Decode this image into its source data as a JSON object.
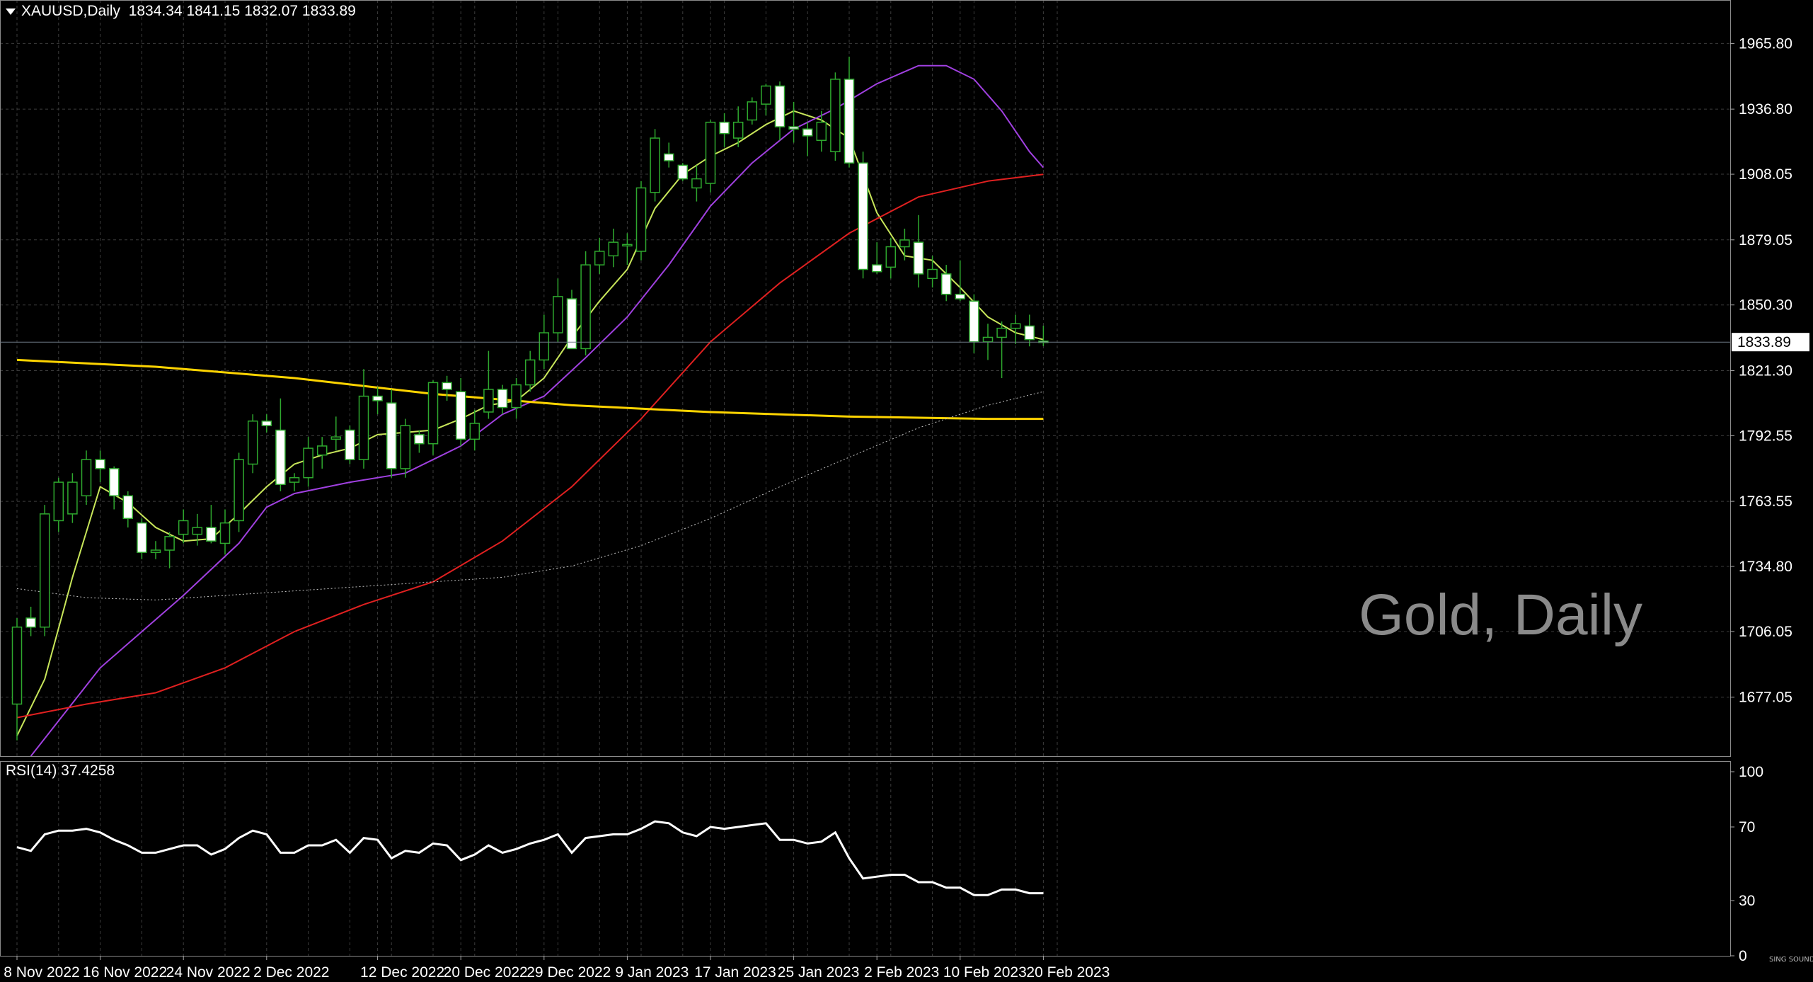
{
  "header": {
    "symbol": "XAUUSD,Daily",
    "ohlc": "1834.34 1841.15 1832.07 1833.89"
  },
  "watermark": "Gold, Daily",
  "rsi_label": "RSI(14) 37.4258",
  "logo_text": "SING SOUND",
  "colors": {
    "background": "#000000",
    "grid": "#3c3c3c",
    "candle_up_fill": "#000000",
    "candle_up_stroke": "#2ea82e",
    "candle_down_fill": "#ffffff",
    "candle_down_stroke": "#2ea82e",
    "ma_fast": "#c8e65a",
    "ma_purple": "#a040e0",
    "ma_red": "#e02020",
    "ma_yellow": "#ffd400",
    "ma_slow_dotted": "#c0c0c0",
    "rsi": "#ffffff",
    "current_price_line": "#6e7a86"
  },
  "chart_data": [
    {
      "type": "candlestick",
      "title": "XAUUSD,Daily",
      "ylim": [
        1651,
        1985
      ],
      "y_ticks": [
        1965.8,
        1936.8,
        1908.05,
        1879.05,
        1850.3,
        1821.3,
        1792.55,
        1763.55,
        1734.8,
        1706.05,
        1677.05
      ],
      "y_tick_labels": [
        "1965.80",
        "1936.80",
        "1908.05",
        "1879.05",
        "1850.30",
        "1821.30",
        "1792.55",
        "1763.55",
        "1734.80",
        "1706.05",
        "1677.05"
      ],
      "current_price": 1833.89,
      "current_price_label": "1833.89",
      "x_ticks": [
        {
          "index": 0,
          "label": "8 Nov 2022"
        },
        {
          "index": 6,
          "label": "16 Nov 2022"
        },
        {
          "index": 12,
          "label": "24 Nov 2022"
        },
        {
          "index": 18,
          "label": "2 Dec 2022"
        },
        {
          "index": 26,
          "label": "12 Dec 2022"
        },
        {
          "index": 32,
          "label": "20 Dec 2022"
        },
        {
          "index": 38,
          "label": "29 Dec 2022"
        },
        {
          "index": 44,
          "label": "9 Jan 2023"
        },
        {
          "index": 50,
          "label": "17 Jan 2023"
        },
        {
          "index": 56,
          "label": "25 Jan 2023"
        },
        {
          "index": 62,
          "label": "2 Feb 2023"
        },
        {
          "index": 68,
          "label": "10 Feb 2023"
        },
        {
          "index": 74,
          "label": "20 Feb 2023"
        }
      ],
      "candles": [
        [
          1674,
          1712,
          1658,
          1708
        ],
        [
          1712,
          1717,
          1704,
          1708
        ],
        [
          1708,
          1762,
          1704,
          1758
        ],
        [
          1755,
          1774,
          1750,
          1772
        ],
        [
          1758,
          1776,
          1754,
          1772
        ],
        [
          1766,
          1786,
          1762,
          1782
        ],
        [
          1782,
          1786,
          1772,
          1778
        ],
        [
          1778,
          1779,
          1760,
          1766
        ],
        [
          1766,
          1768,
          1752,
          1756
        ],
        [
          1754,
          1756,
          1738,
          1741
        ],
        [
          1741,
          1746,
          1738,
          1742
        ],
        [
          1742,
          1750,
          1734,
          1748
        ],
        [
          1749,
          1760,
          1745,
          1755
        ],
        [
          1749,
          1758,
          1744,
          1752
        ],
        [
          1752,
          1762,
          1745,
          1746
        ],
        [
          1745,
          1760,
          1740,
          1754
        ],
        [
          1755,
          1785,
          1750,
          1782
        ],
        [
          1780,
          1802,
          1776,
          1799
        ],
        [
          1799,
          1802,
          1794,
          1797
        ],
        [
          1795,
          1809,
          1768,
          1771
        ],
        [
          1772,
          1776,
          1768,
          1774
        ],
        [
          1774,
          1792,
          1770,
          1787
        ],
        [
          1784,
          1792,
          1778,
          1788
        ],
        [
          1791,
          1801,
          1786,
          1792
        ],
        [
          1795,
          1797,
          1780,
          1782
        ],
        [
          1782,
          1822,
          1778,
          1810
        ],
        [
          1810,
          1814,
          1802,
          1808
        ],
        [
          1807,
          1813,
          1774,
          1778
        ],
        [
          1778,
          1800,
          1774,
          1797
        ],
        [
          1793,
          1795,
          1785,
          1789
        ],
        [
          1789,
          1817,
          1784,
          1816
        ],
        [
          1816,
          1819,
          1808,
          1813
        ],
        [
          1812,
          1818,
          1788,
          1791
        ],
        [
          1791,
          1804,
          1786,
          1798
        ],
        [
          1803,
          1830,
          1800,
          1813
        ],
        [
          1813,
          1815,
          1802,
          1805
        ],
        [
          1805,
          1818,
          1800,
          1815
        ],
        [
          1815,
          1830,
          1812,
          1826
        ],
        [
          1826,
          1846,
          1822,
          1838
        ],
        [
          1838,
          1862,
          1834,
          1854
        ],
        [
          1853,
          1857,
          1831,
          1831
        ],
        [
          1831,
          1874,
          1828,
          1868
        ],
        [
          1868,
          1880,
          1864,
          1874
        ],
        [
          1872,
          1884,
          1867,
          1878
        ],
        [
          1877,
          1882,
          1868,
          1877
        ],
        [
          1874,
          1905,
          1870,
          1902
        ],
        [
          1900,
          1928,
          1896,
          1924
        ],
        [
          1917,
          1922,
          1911,
          1914
        ],
        [
          1912,
          1913,
          1905,
          1906
        ],
        [
          1902,
          1912,
          1896,
          1906
        ],
        [
          1904,
          1932,
          1900,
          1931
        ],
        [
          1931,
          1935,
          1920,
          1926
        ],
        [
          1924,
          1938,
          1920,
          1931
        ],
        [
          1932,
          1942,
          1930,
          1940
        ],
        [
          1939,
          1948,
          1934,
          1947
        ],
        [
          1947,
          1949,
          1923,
          1929
        ],
        [
          1929,
          1940,
          1922,
          1928
        ],
        [
          1928,
          1931,
          1916,
          1925
        ],
        [
          1923,
          1936,
          1918,
          1931
        ],
        [
          1918,
          1953,
          1914,
          1950
        ],
        [
          1950,
          1960,
          1911,
          1913
        ],
        [
          1913,
          1918,
          1862,
          1866
        ],
        [
          1868,
          1878,
          1864,
          1865
        ],
        [
          1867,
          1880,
          1862,
          1876
        ],
        [
          1876,
          1884,
          1870,
          1879
        ],
        [
          1878,
          1890,
          1858,
          1864
        ],
        [
          1862,
          1872,
          1858,
          1866
        ],
        [
          1864,
          1868,
          1852,
          1855
        ],
        [
          1855,
          1870,
          1852,
          1853
        ],
        [
          1852,
          1855,
          1829,
          1834
        ],
        [
          1834,
          1842,
          1826,
          1836
        ],
        [
          1836,
          1843,
          1818,
          1840
        ],
        [
          1840,
          1846,
          1833,
          1842
        ],
        [
          1841,
          1846,
          1832,
          1835
        ],
        [
          1834.34,
          1841.15,
          1832.07,
          1833.89
        ]
      ],
      "moving_averages": [
        {
          "color_key": "ma_fast",
          "style": "solid",
          "points": [
            [
              0,
              1660
            ],
            [
              2,
              1685
            ],
            [
              4,
              1730
            ],
            [
              6,
              1770
            ],
            [
              8,
              1763
            ],
            [
              10,
              1752
            ],
            [
              12,
              1746
            ],
            [
              14,
              1747
            ],
            [
              16,
              1758
            ],
            [
              18,
              1770
            ],
            [
              20,
              1780
            ],
            [
              22,
              1784
            ],
            [
              24,
              1787
            ],
            [
              26,
              1793
            ],
            [
              28,
              1794
            ],
            [
              30,
              1795
            ],
            [
              32,
              1800
            ],
            [
              34,
              1806
            ],
            [
              36,
              1808
            ],
            [
              38,
              1818
            ],
            [
              40,
              1836
            ],
            [
              42,
              1852
            ],
            [
              44,
              1866
            ],
            [
              46,
              1893
            ],
            [
              48,
              1908
            ],
            [
              50,
              1916
            ],
            [
              52,
              1922
            ],
            [
              54,
              1930
            ],
            [
              56,
              1936
            ],
            [
              58,
              1932
            ],
            [
              60,
              1924
            ],
            [
              62,
              1891
            ],
            [
              64,
              1872
            ],
            [
              66,
              1870
            ],
            [
              68,
              1858
            ],
            [
              70,
              1845
            ],
            [
              72,
              1838
            ],
            [
              74,
              1835
            ]
          ]
        },
        {
          "color_key": "ma_purple",
          "style": "solid",
          "points": [
            [
              1,
              1651
            ],
            [
              6,
              1690
            ],
            [
              12,
              1722
            ],
            [
              16,
              1745
            ],
            [
              18,
              1761
            ],
            [
              20,
              1767
            ],
            [
              24,
              1772
            ],
            [
              28,
              1776
            ],
            [
              32,
              1788
            ],
            [
              35,
              1802
            ],
            [
              38,
              1810
            ],
            [
              41,
              1827
            ],
            [
              44,
              1845
            ],
            [
              47,
              1868
            ],
            [
              50,
              1894
            ],
            [
              53,
              1913
            ],
            [
              56,
              1928
            ],
            [
              59,
              1937
            ],
            [
              62,
              1948
            ],
            [
              65,
              1956
            ],
            [
              67,
              1956
            ],
            [
              69,
              1950
            ],
            [
              71,
              1936
            ],
            [
              73,
              1918
            ],
            [
              74,
              1911
            ]
          ]
        },
        {
          "color_key": "ma_red",
          "style": "solid",
          "points": [
            [
              0,
              1668
            ],
            [
              5,
              1674
            ],
            [
              10,
              1679
            ],
            [
              15,
              1690
            ],
            [
              20,
              1706
            ],
            [
              25,
              1718
            ],
            [
              30,
              1728
            ],
            [
              35,
              1746
            ],
            [
              40,
              1770
            ],
            [
              45,
              1800
            ],
            [
              50,
              1834
            ],
            [
              55,
              1860
            ],
            [
              60,
              1882
            ],
            [
              65,
              1898
            ],
            [
              70,
              1905
            ],
            [
              74,
              1908
            ]
          ]
        },
        {
          "color_key": "ma_yellow",
          "style": "solid",
          "points": [
            [
              0,
              1826
            ],
            [
              10,
              1823
            ],
            [
              20,
              1818
            ],
            [
              30,
              1811
            ],
            [
              40,
              1806
            ],
            [
              50,
              1803
            ],
            [
              60,
              1801
            ],
            [
              70,
              1800
            ],
            [
              74,
              1800
            ]
          ]
        },
        {
          "color_key": "ma_slow_dotted",
          "style": "dotted",
          "points": [
            [
              0,
              1725
            ],
            [
              5,
              1721
            ],
            [
              10,
              1720
            ],
            [
              15,
              1722
            ],
            [
              20,
              1724
            ],
            [
              25,
              1726
            ],
            [
              30,
              1728
            ],
            [
              35,
              1730
            ],
            [
              40,
              1735
            ],
            [
              45,
              1744
            ],
            [
              50,
              1756
            ],
            [
              55,
              1770
            ],
            [
              60,
              1783
            ],
            [
              65,
              1796
            ],
            [
              70,
              1806
            ],
            [
              74,
              1812
            ]
          ]
        }
      ]
    },
    {
      "type": "line",
      "title": "RSI(14) 37.4258",
      "ylim": [
        0,
        100
      ],
      "y_ticks": [
        0,
        30,
        70,
        100
      ],
      "y_tick_labels": [
        "0",
        "30",
        "70",
        "100"
      ],
      "series": [
        {
          "values": [
            59,
            57,
            66,
            68,
            68,
            69,
            67,
            63,
            60,
            56,
            56,
            58,
            60,
            60,
            55,
            58,
            64,
            68,
            66,
            56,
            56,
            60,
            60,
            63,
            56,
            64,
            63,
            53,
            57,
            56,
            61,
            60,
            52,
            55,
            60,
            56,
            58,
            61,
            63,
            66,
            56,
            64,
            65,
            66,
            66,
            69,
            73,
            72,
            67,
            65,
            70,
            69,
            70,
            71,
            72,
            63,
            63,
            61,
            62,
            67,
            53,
            42,
            43,
            44,
            44,
            40,
            40,
            37,
            37,
            33,
            33,
            36,
            36,
            34,
            34
          ]
        }
      ]
    }
  ]
}
